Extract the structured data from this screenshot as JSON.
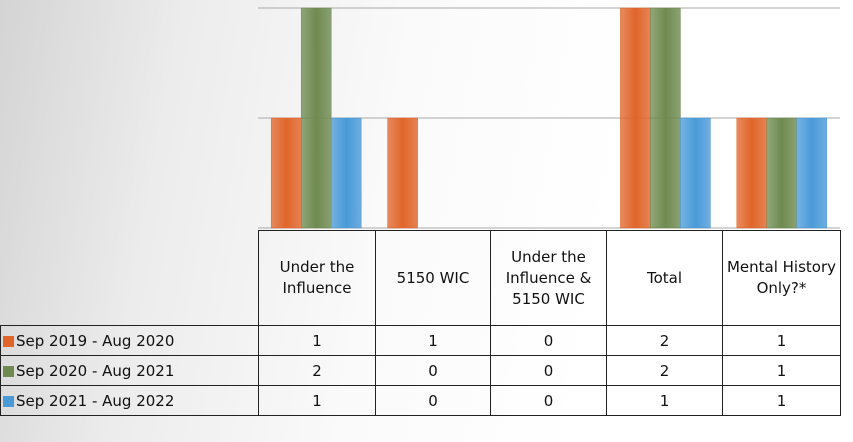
{
  "chart_data": {
    "type": "bar",
    "categories": [
      "Under the Influence",
      "5150 WIC",
      "Under the Influence & 5150 WIC",
      "Total",
      "Mental History Only?*"
    ],
    "series": [
      {
        "name": "Sep 2019 - Aug 2020",
        "color": "#e0652a",
        "values": [
          1,
          1,
          0,
          2,
          1
        ]
      },
      {
        "name": "Sep 2020 - Aug 2021",
        "color": "#6f8a50",
        "values": [
          2,
          0,
          0,
          2,
          1
        ]
      },
      {
        "name": "Sep 2021 - Aug 2022",
        "color": "#4a9ad8",
        "values": [
          1,
          0,
          0,
          1,
          1
        ]
      }
    ],
    "ylim": [
      0,
      2
    ],
    "yticks": [
      0,
      1,
      2
    ],
    "grid": true
  }
}
